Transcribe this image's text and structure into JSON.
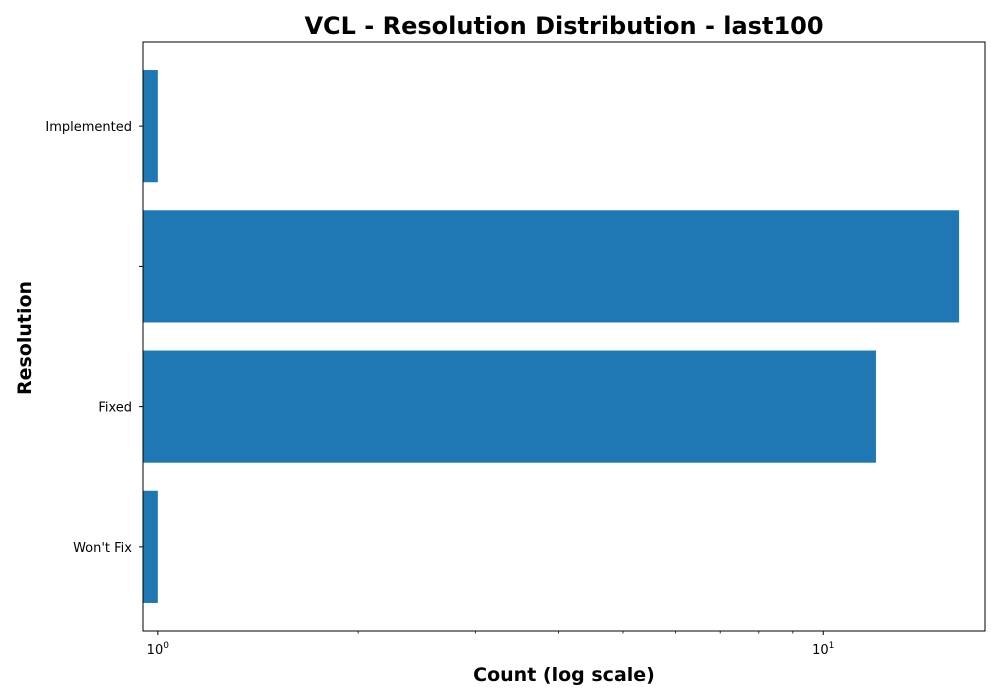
{
  "chart_data": {
    "type": "bar",
    "orientation": "horizontal",
    "title": "VCL - Resolution Distribution - last100",
    "xlabel": "Count (log scale)",
    "ylabel": "Resolution",
    "x_scale": "log",
    "xlim": [
      0.95,
      17.5
    ],
    "categories": [
      "Won't Fix",
      "Fixed",
      "",
      "Implemented"
    ],
    "values": [
      1,
      12,
      16,
      1
    ],
    "x_major_ticks": [
      {
        "value": 1,
        "base": "10",
        "exp": "0"
      },
      {
        "value": 10,
        "base": "10",
        "exp": "1"
      }
    ],
    "x_minor_ticks": [
      2,
      3,
      4,
      5,
      6,
      7,
      8,
      9
    ],
    "bar_color": "#1f77b4",
    "grid": false,
    "legend": "none"
  }
}
